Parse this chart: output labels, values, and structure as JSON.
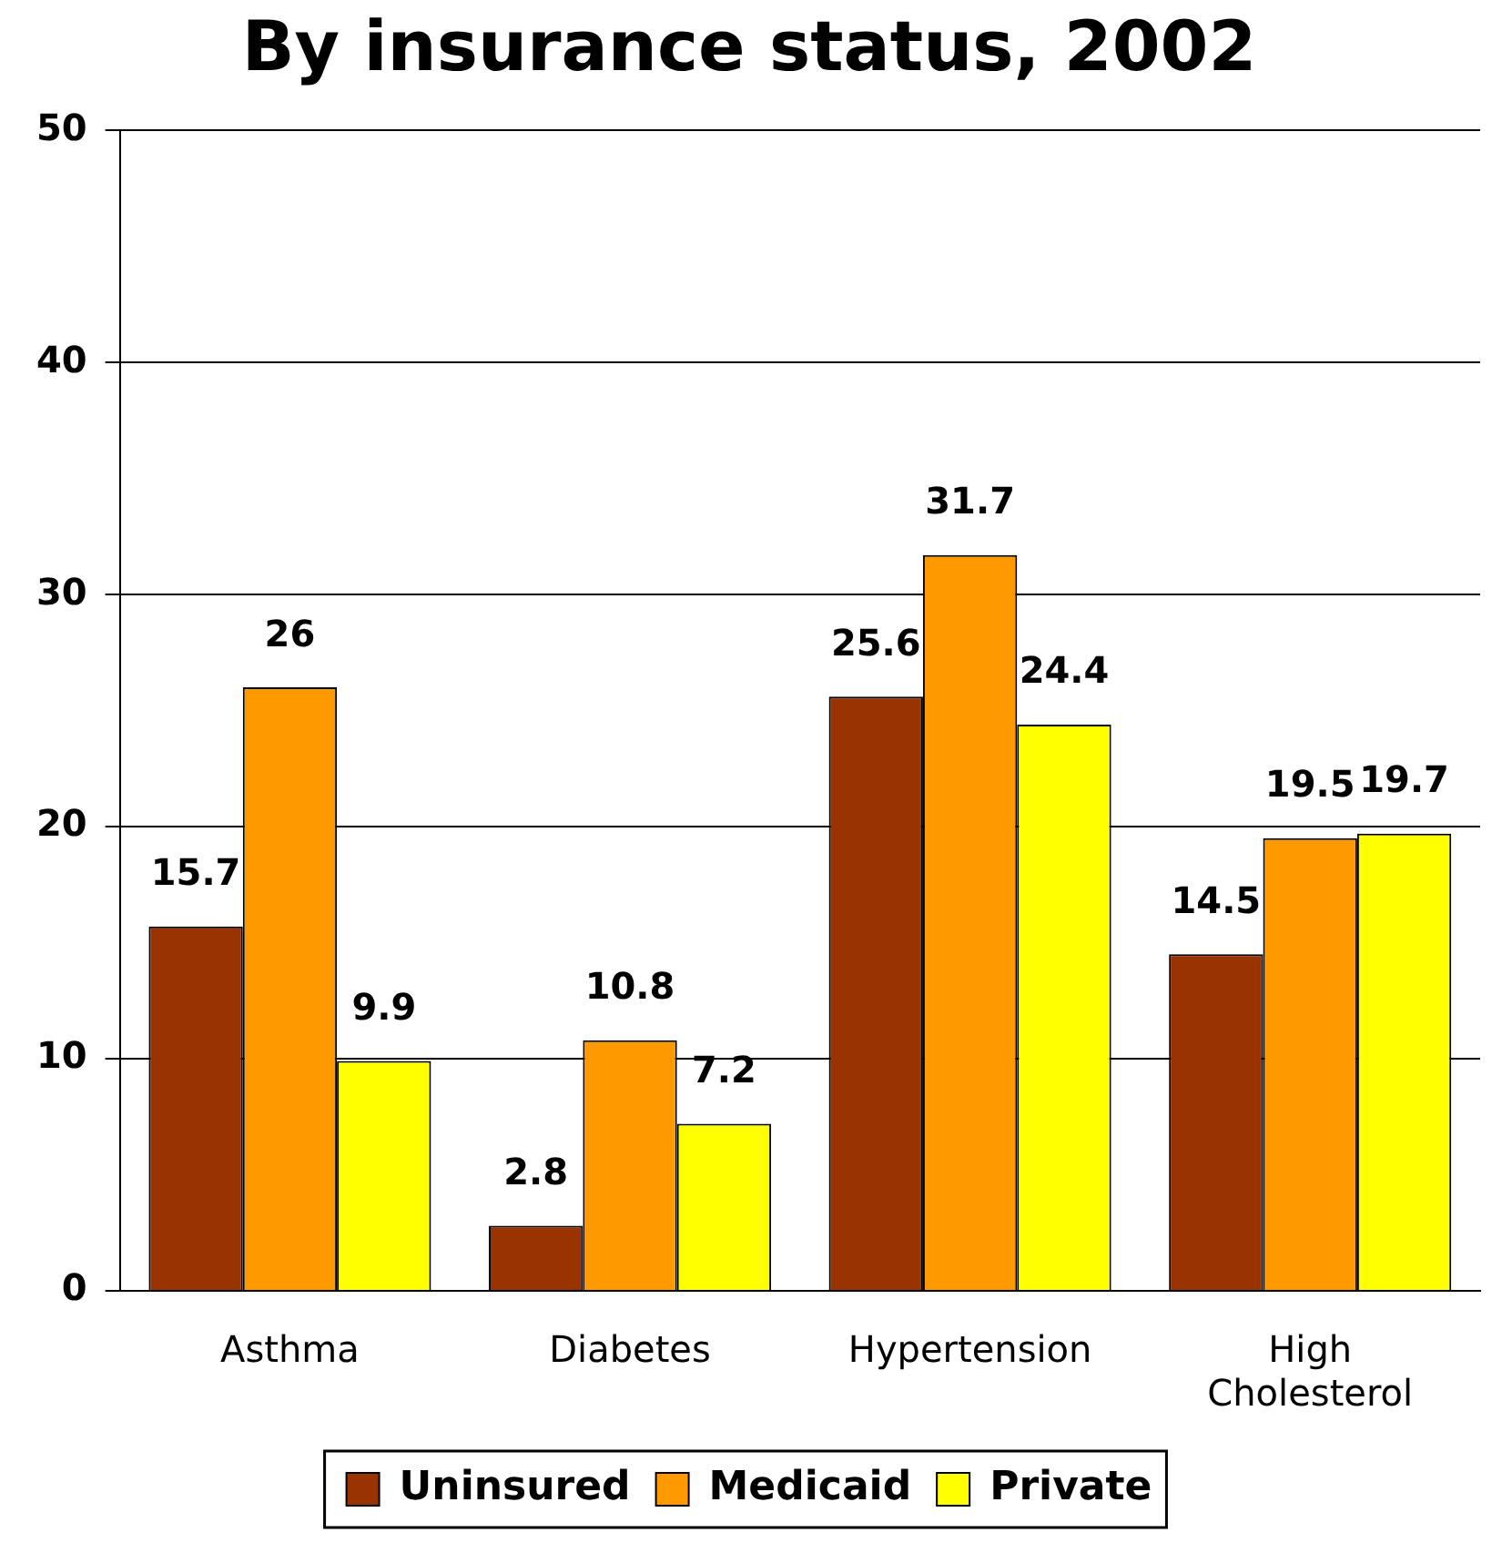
{
  "chart_data": {
    "type": "bar",
    "title": "By insurance status, 2002",
    "categories": [
      "Asthma",
      "Diabetes",
      "Hypertension",
      "High Cholesterol"
    ],
    "series": [
      {
        "name": "Uninsured",
        "color": "#993300",
        "values": [
          15.7,
          2.8,
          25.6,
          14.5
        ]
      },
      {
        "name": "Medicaid",
        "color": "#ff9900",
        "values": [
          26,
          10.8,
          31.7,
          19.5
        ]
      },
      {
        "name": "Private",
        "color": "#ffff00",
        "values": [
          9.9,
          7.2,
          24.4,
          19.7
        ]
      }
    ],
    "ylim": [
      0,
      50
    ],
    "yticks": [
      0,
      10,
      20,
      30,
      40,
      50
    ],
    "grid": "y",
    "legend": "bottom",
    "data_labels": true
  }
}
